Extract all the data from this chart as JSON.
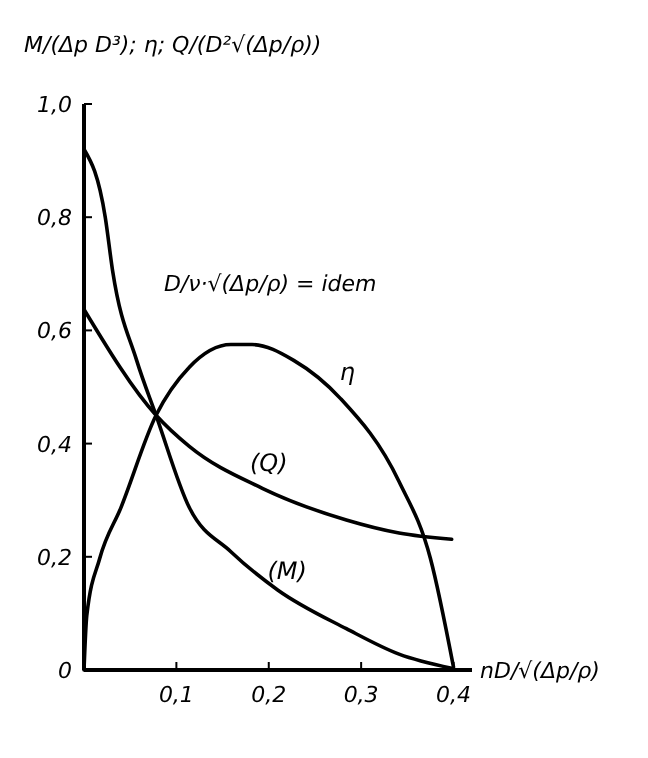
{
  "chart_data": {
    "type": "line",
    "ylabel": "M/(Δp D³); η; Q/(D²√(Δp/ρ))",
    "xlabel": "nD/√(Δp/ρ)",
    "xlim": [
      0,
      0.42
    ],
    "ylim": [
      0,
      1.0
    ],
    "xticks": [
      {
        "value": 0.1,
        "label": "0,1"
      },
      {
        "value": 0.2,
        "label": "0,2"
      },
      {
        "value": 0.3,
        "label": "0,3"
      },
      {
        "value": 0.4,
        "label": "0,4"
      }
    ],
    "yticks": [
      0,
      {
        "value": 0.2,
        "label": "0,2"
      },
      {
        "value": 0.4,
        "label": "0,4"
      },
      {
        "value": 0.6,
        "label": "0,6"
      },
      {
        "value": 0.8,
        "label": "0,8"
      },
      {
        "value": 1.0,
        "label": "1,0"
      }
    ],
    "annotations": [
      "D/ν·√(Δp/ρ) = idem"
    ],
    "legend": false,
    "grid": false,
    "marker": "none",
    "line_style": "solid",
    "series": [
      {
        "name": "η",
        "color": "#000000",
        "x": [
          0,
          0.003,
          0.017,
          0.04,
          0.078,
          0.114,
          0.159,
          0.182,
          0.227,
          0.278,
          0.341,
          0.375,
          0.4
        ],
        "values": [
          0,
          0.096,
          0.197,
          0.287,
          0.45,
          0.535,
          0.575,
          0.575,
          0.547,
          0.479,
          0.333,
          0.197,
          0.005
        ]
      },
      {
        "name": "(Q)",
        "color": "#000000",
        "x": [
          0,
          0.078,
          0.114,
          0.193,
          0.284,
          0.341,
          0.398
        ],
        "values": [
          0.637,
          0.45,
          0.395,
          0.321,
          0.265,
          0.242,
          0.231
        ]
      },
      {
        "name": "(M)",
        "color": "#000000",
        "x": [
          0,
          0.023,
          0.031,
          0.057,
          0.078,
          0.114,
          0.159,
          0.21,
          0.284,
          0.341,
          0.398
        ],
        "values": [
          0.92,
          0.8,
          0.705,
          0.547,
          0.45,
          0.287,
          0.209,
          0.141,
          0.073,
          0.028,
          0.003
        ]
      }
    ]
  }
}
